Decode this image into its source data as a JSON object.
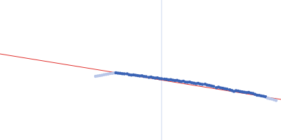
{
  "chart_data": {
    "type": "scatter",
    "xlim": [
      0,
      400
    ],
    "ylim": [
      0,
      200
    ],
    "tick_labels": false,
    "grid": false,
    "vline": 230,
    "series": [
      {
        "type": "line",
        "color": "#e0302c",
        "line_style": "solid",
        "x": [
          0,
          400
        ],
        "values": [
          123,
          58
        ]
      },
      {
        "type": "scatter",
        "color": "#b8c6e8",
        "marker": "circle",
        "x": [
          136,
          139,
          142,
          145,
          148,
          151,
          154,
          157,
          160,
          163
        ],
        "values": [
          91,
          91.5,
          92,
          92.6,
          93.2,
          93.8,
          94.3,
          94.9,
          95.3,
          95.8
        ]
      },
      {
        "type": "scatter",
        "color": "#3a63b5",
        "marker": "circle",
        "x": [
          165,
          168,
          171,
          174,
          177,
          181,
          184,
          187,
          190,
          193,
          196,
          199,
          202,
          205,
          208,
          212,
          215,
          218,
          221,
          224,
          227,
          230,
          234,
          237,
          240,
          243,
          246,
          249,
          252,
          255,
          258,
          261,
          264,
          267,
          270,
          273,
          276,
          279,
          282,
          285,
          288,
          292,
          295,
          298,
          301,
          304,
          308,
          311,
          314,
          317,
          320,
          323,
          327,
          330,
          333,
          336,
          339,
          342,
          345,
          348,
          351,
          354,
          357,
          360,
          363,
          366,
          369,
          372,
          375,
          378
        ],
        "values": [
          96,
          95.5,
          95.2,
          94.8,
          94.5,
          94.6,
          93.2,
          92.8,
          93,
          92.4,
          92,
          91.5,
          91.8,
          90.8,
          90.6,
          89.6,
          89.9,
          89,
          88.6,
          88.7,
          87.8,
          87.5,
          87,
          86.8,
          85.9,
          86.2,
          85.4,
          84.9,
          85.2,
          84.2,
          83.6,
          83.9,
          82.7,
          82.5,
          82.8,
          81.7,
          81.2,
          80.6,
          80.9,
          79.9,
          79.5,
          79.8,
          78.6,
          78,
          77.2,
          76.5,
          74.8,
          75.4,
          74.5,
          74,
          73.3,
          72.8,
          71.8,
          70.8,
          69.6,
          70.5,
          70,
          69.2,
          68.8,
          68.2,
          67.8,
          67.9,
          67,
          66.5,
          65.2,
          64.1,
          63.8,
          62.9,
          62.4,
          61.8
        ]
      },
      {
        "type": "scatter",
        "color": "#b8c6e8",
        "marker": "circle",
        "x": [
          381,
          384,
          387,
          390,
          393
        ],
        "values": [
          59.8,
          58.9,
          58.4,
          57.6,
          56.5
        ]
      }
    ]
  }
}
